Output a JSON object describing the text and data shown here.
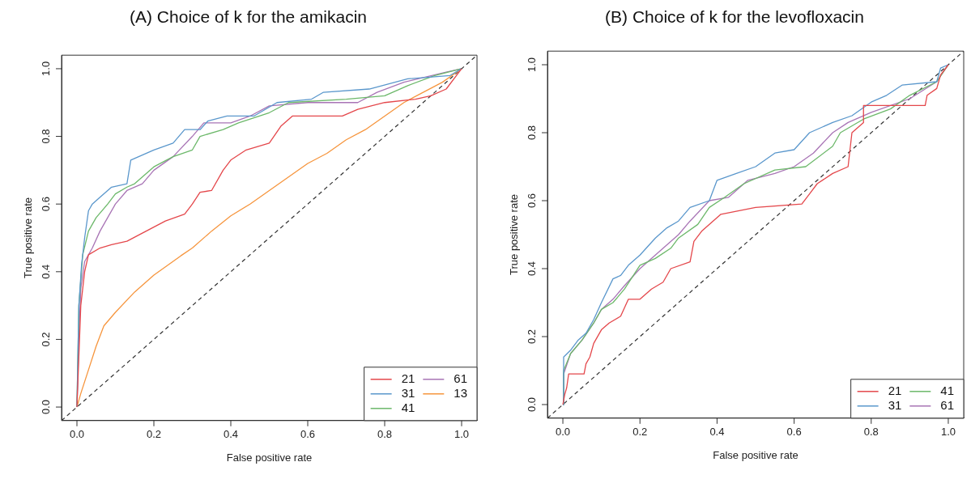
{
  "chart_data": [
    {
      "type": "line",
      "title": "(A) Choice of k for the amikacin",
      "xlabel": "False positive rate",
      "ylabel": "True positive rate",
      "xlim": [
        -0.04,
        1.04
      ],
      "ylim": [
        -0.04,
        1.04
      ],
      "xticks": [
        {
          "value": 0,
          "label": "0.0"
        },
        {
          "value": 0.2,
          "label": "0.2"
        },
        {
          "value": 0.4,
          "label": "0.4"
        },
        {
          "value": 0.6,
          "label": "0.6"
        },
        {
          "value": 0.8,
          "label": "0.8"
        },
        {
          "value": 1,
          "label": "1.0"
        }
      ],
      "yticks": [
        {
          "value": 0,
          "label": "0.0"
        },
        {
          "value": 0.2,
          "label": "0.2"
        },
        {
          "value": 0.4,
          "label": "0.4"
        },
        {
          "value": 0.6,
          "label": "0.6"
        },
        {
          "value": 0.8,
          "label": "0.8"
        },
        {
          "value": 1,
          "label": "1.0"
        }
      ],
      "legend": "bottom right",
      "marker": "none",
      "series": [
        {
          "name": "21",
          "color": "#e4474b",
          "x": [
            0,
            0.005,
            0.01,
            0.02,
            0.03,
            0.06,
            0.09,
            0.13,
            0.18,
            0.23,
            0.28,
            0.3,
            0.32,
            0.35,
            0.38,
            0.4,
            0.44,
            0.5,
            0.53,
            0.56,
            0.69,
            0.73,
            0.8,
            0.88,
            0.92,
            0.96,
            1
          ],
          "values": [
            0,
            0.15,
            0.3,
            0.4,
            0.45,
            0.47,
            0.48,
            0.49,
            0.52,
            0.55,
            0.57,
            0.6,
            0.635,
            0.64,
            0.7,
            0.73,
            0.76,
            0.78,
            0.83,
            0.86,
            0.86,
            0.88,
            0.9,
            0.91,
            0.92,
            0.94,
            1
          ]
        },
        {
          "name": "31",
          "color": "#5a97cc",
          "x": [
            0,
            0.005,
            0.012,
            0.02,
            0.03,
            0.04,
            0.06,
            0.09,
            0.13,
            0.14,
            0.2,
            0.25,
            0.28,
            0.32,
            0.34,
            0.39,
            0.46,
            0.52,
            0.61,
            0.64,
            0.76,
            0.86,
            0.97,
            1
          ],
          "values": [
            0,
            0.3,
            0.42,
            0.5,
            0.58,
            0.6,
            0.62,
            0.65,
            0.66,
            0.73,
            0.76,
            0.78,
            0.82,
            0.82,
            0.845,
            0.86,
            0.86,
            0.9,
            0.91,
            0.93,
            0.94,
            0.97,
            0.98,
            1
          ]
        },
        {
          "name": "41",
          "color": "#6cb86a",
          "x": [
            0,
            0.005,
            0.015,
            0.03,
            0.05,
            0.08,
            0.1,
            0.13,
            0.15,
            0.2,
            0.25,
            0.3,
            0.32,
            0.38,
            0.42,
            0.5,
            0.55,
            0.7,
            0.8,
            0.86,
            0.93,
            1
          ],
          "values": [
            0,
            0.3,
            0.45,
            0.52,
            0.56,
            0.6,
            0.63,
            0.65,
            0.66,
            0.71,
            0.74,
            0.76,
            0.8,
            0.82,
            0.84,
            0.87,
            0.9,
            0.91,
            0.92,
            0.95,
            0.98,
            1
          ]
        },
        {
          "name": "61",
          "color": "#a874b5",
          "x": [
            0,
            0.005,
            0.01,
            0.02,
            0.04,
            0.06,
            0.08,
            0.1,
            0.13,
            0.17,
            0.2,
            0.25,
            0.3,
            0.33,
            0.4,
            0.45,
            0.5,
            0.6,
            0.73,
            0.78,
            0.85,
            0.96,
            1
          ],
          "values": [
            0,
            0.2,
            0.35,
            0.43,
            0.47,
            0.52,
            0.56,
            0.6,
            0.64,
            0.66,
            0.7,
            0.74,
            0.8,
            0.84,
            0.84,
            0.86,
            0.89,
            0.9,
            0.9,
            0.93,
            0.96,
            0.99,
            1
          ]
        },
        {
          "name": "13",
          "color": "#f6953d",
          "x": [
            0,
            0.01,
            0.03,
            0.05,
            0.07,
            0.1,
            0.15,
            0.2,
            0.27,
            0.3,
            0.35,
            0.4,
            0.45,
            0.5,
            0.55,
            0.6,
            0.65,
            0.7,
            0.75,
            0.8,
            0.85,
            0.9,
            0.95,
            1
          ],
          "values": [
            0,
            0.04,
            0.11,
            0.18,
            0.24,
            0.28,
            0.34,
            0.39,
            0.447,
            0.47,
            0.52,
            0.565,
            0.6,
            0.64,
            0.68,
            0.72,
            0.75,
            0.79,
            0.82,
            0.86,
            0.9,
            0.93,
            0.96,
            1
          ]
        },
        {
          "type": "line",
          "color": "#333333",
          "line_style": "dashed",
          "x": [
            -0.04,
            1.04
          ],
          "values": [
            -0.04,
            1.04
          ]
        }
      ]
    },
    {
      "type": "line",
      "title": "(B) Choice of k for the levofloxacin",
      "xlabel": "False positive rate",
      "ylabel": "True positive rate",
      "xlim": [
        -0.04,
        1.04
      ],
      "ylim": [
        -0.04,
        1.04
      ],
      "xticks": [
        {
          "value": 0,
          "label": "0.0"
        },
        {
          "value": 0.2,
          "label": "0.2"
        },
        {
          "value": 0.4,
          "label": "0.4"
        },
        {
          "value": 0.6,
          "label": "0.6"
        },
        {
          "value": 0.8,
          "label": "0.8"
        },
        {
          "value": 1,
          "label": "1.0"
        }
      ],
      "yticks": [
        {
          "value": 0,
          "label": "0.0"
        },
        {
          "value": 0.2,
          "label": "0.2"
        },
        {
          "value": 0.4,
          "label": "0.4"
        },
        {
          "value": 0.6,
          "label": "0.6"
        },
        {
          "value": 0.8,
          "label": "0.8"
        },
        {
          "value": 1,
          "label": "1.0"
        }
      ],
      "legend": "bottom right",
      "marker": "none",
      "series": [
        {
          "name": "21",
          "color": "#e4474b",
          "x": [
            0,
            0.005,
            0.01,
            0.015,
            0.055,
            0.06,
            0.07,
            0.08,
            0.1,
            0.12,
            0.15,
            0.17,
            0.2,
            0.23,
            0.26,
            0.28,
            0.33,
            0.34,
            0.36,
            0.41,
            0.5,
            0.62,
            0.64,
            0.66,
            0.7,
            0.74,
            0.75,
            0.78,
            0.78,
            0.94,
            0.945,
            0.97,
            0.98,
            1
          ],
          "values": [
            0,
            0.03,
            0.05,
            0.09,
            0.09,
            0.12,
            0.14,
            0.18,
            0.22,
            0.24,
            0.26,
            0.31,
            0.31,
            0.34,
            0.36,
            0.4,
            0.42,
            0.48,
            0.51,
            0.56,
            0.58,
            0.59,
            0.62,
            0.65,
            0.68,
            0.7,
            0.8,
            0.83,
            0.88,
            0.88,
            0.91,
            0.93,
            0.97,
            1
          ]
        },
        {
          "name": "31",
          "color": "#5a97cc",
          "x": [
            0,
            0.002,
            0.02,
            0.04,
            0.06,
            0.08,
            0.1,
            0.13,
            0.15,
            0.17,
            0.2,
            0.24,
            0.27,
            0.3,
            0.33,
            0.38,
            0.4,
            0.45,
            0.5,
            0.55,
            0.6,
            0.64,
            0.7,
            0.75,
            0.8,
            0.84,
            0.88,
            0.97,
            0.98,
            1
          ],
          "values": [
            0,
            0.14,
            0.16,
            0.19,
            0.21,
            0.25,
            0.3,
            0.37,
            0.38,
            0.41,
            0.44,
            0.49,
            0.52,
            0.54,
            0.58,
            0.6,
            0.66,
            0.68,
            0.7,
            0.74,
            0.75,
            0.8,
            0.83,
            0.85,
            0.89,
            0.91,
            0.94,
            0.95,
            0.99,
            1
          ]
        },
        {
          "name": "41",
          "color": "#6cb86a",
          "x": [
            0,
            0.002,
            0.02,
            0.05,
            0.08,
            0.1,
            0.13,
            0.16,
            0.2,
            0.24,
            0.28,
            0.3,
            0.35,
            0.38,
            0.42,
            0.47,
            0.55,
            0.63,
            0.7,
            0.72,
            0.78,
            0.85,
            0.9,
            0.97,
            1
          ],
          "values": [
            0,
            0.1,
            0.15,
            0.19,
            0.24,
            0.28,
            0.3,
            0.34,
            0.41,
            0.43,
            0.46,
            0.49,
            0.53,
            0.58,
            0.61,
            0.65,
            0.69,
            0.7,
            0.76,
            0.8,
            0.84,
            0.87,
            0.91,
            0.95,
            1
          ]
        },
        {
          "name": "61",
          "color": "#a874b5",
          "x": [
            0,
            0.002,
            0.02,
            0.05,
            0.08,
            0.1,
            0.13,
            0.16,
            0.2,
            0.25,
            0.3,
            0.33,
            0.38,
            0.43,
            0.48,
            0.55,
            0.6,
            0.65,
            0.7,
            0.74,
            0.8,
            0.9,
            0.97,
            1
          ],
          "values": [
            0,
            0.09,
            0.15,
            0.19,
            0.24,
            0.28,
            0.31,
            0.35,
            0.4,
            0.45,
            0.5,
            0.54,
            0.6,
            0.61,
            0.66,
            0.68,
            0.7,
            0.74,
            0.8,
            0.83,
            0.86,
            0.9,
            0.95,
            1
          ]
        },
        {
          "type": "line",
          "color": "#333333",
          "line_style": "dashed",
          "x": [
            -0.04,
            1.04
          ],
          "values": [
            -0.04,
            1.04
          ]
        }
      ]
    }
  ]
}
